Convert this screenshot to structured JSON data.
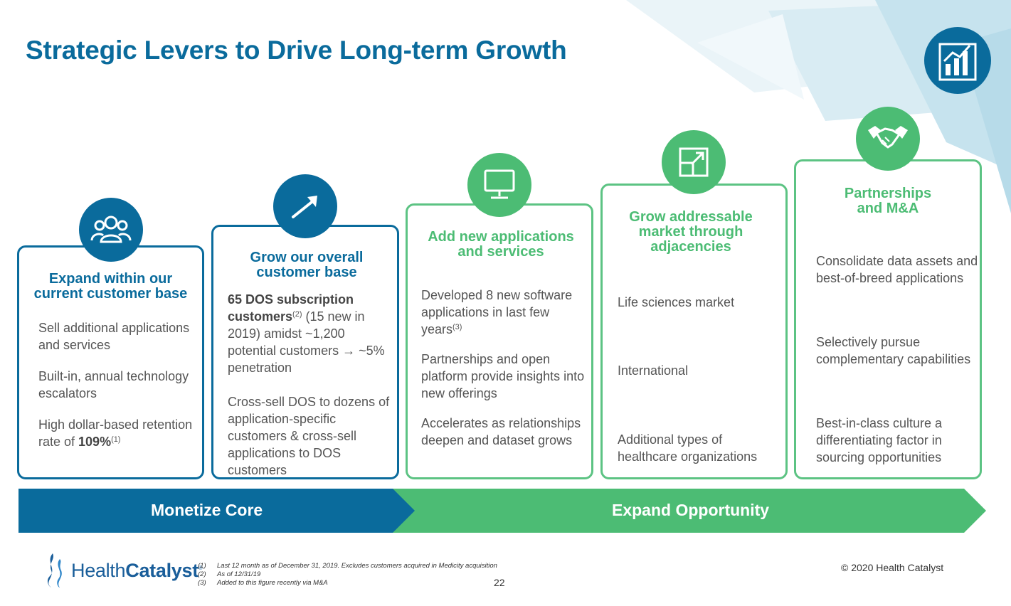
{
  "slide": {
    "title": "Strategic Levers to Drive Long-term Growth",
    "colors": {
      "blue": "#0a6b9c",
      "green": "#4cbc74",
      "text": "#555555"
    }
  },
  "columns": [
    {
      "icon": "people-group-icon",
      "heading": "Expand within our\ncurrent customer base",
      "items": [
        {
          "text": "Sell additional applications and services"
        },
        {
          "text": "Built-in, annual technology escalators"
        },
        {
          "pre": "High dollar-based retention rate of ",
          "strong": "109%",
          "sup": "(1)"
        }
      ]
    },
    {
      "icon": "trend-arrow-icon",
      "heading": "Grow our overall\ncustomer base",
      "items": [
        {
          "strong": "65 DOS subscription customers",
          "sup": "(2)",
          "post": " (15 new in 2019) amidst ~1,200 potential customers → ~5% penetration"
        },
        {
          "text": "Cross-sell DOS to dozens of application-specific customers & cross-sell applications to DOS customers"
        }
      ]
    },
    {
      "icon": "computer-monitor-icon",
      "heading": "Add new applications\nand services",
      "items": [
        {
          "pre": "Developed 8 new software applications in last few years",
          "sup": "(3)"
        },
        {
          "text": "Partnerships and open platform provide insights into new offerings"
        },
        {
          "text": "Accelerates as relationships deepen and dataset grows"
        }
      ]
    },
    {
      "icon": "expand-box-icon",
      "heading": "Grow addressable\nmarket through\nadjacencies",
      "items": [
        {
          "text": "Life sciences market"
        },
        {
          "text": "International"
        },
        {
          "text": "Additional types of healthcare organizations"
        }
      ]
    },
    {
      "icon": "handshake-icon",
      "heading": "Partnerships\nand M&A",
      "items": [
        {
          "text": "Consolidate data assets and best-of-breed applications"
        },
        {
          "text": "Selectively pursue complementary capabilities"
        },
        {
          "text": "Best-in-class culture a differentiating factor in sourcing opportunities"
        }
      ]
    }
  ],
  "arrows": {
    "left_label": "Monetize Core",
    "right_label": "Expand Opportunity"
  },
  "footer": {
    "logo_light": "Health",
    "logo_bold": "Catalyst",
    "logo_mark": "®",
    "footnotes": [
      {
        "num": "(1)",
        "text": "Last 12 month as of December 31, 2019.  Excludes customers acquired in Medicity acquisition"
      },
      {
        "num": "(2)",
        "text": "As of 12/31/19"
      },
      {
        "num": "(3)",
        "text": "Added to this figure recently via M&A"
      }
    ],
    "page_number": "22",
    "copyright": "© 2020 Health Catalyst"
  }
}
